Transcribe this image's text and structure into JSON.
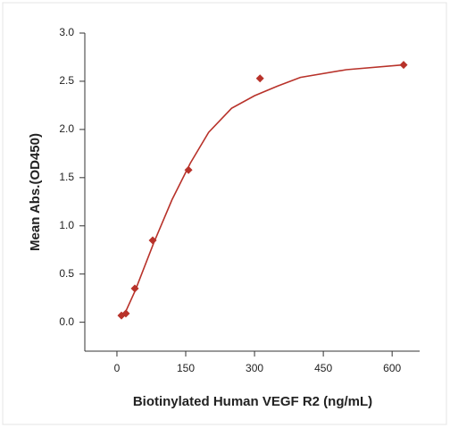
{
  "chart_data": {
    "type": "scatter",
    "x_label": "Biotinylated Human VEGF R2  (ng/mL)",
    "y_label": "Mean Abs.(OD450)",
    "x": [
      9.8,
      19.5,
      39,
      78,
      156,
      312,
      625
    ],
    "values": [
      0.07,
      0.09,
      0.35,
      0.85,
      1.58,
      2.53,
      2.67
    ],
    "fit_x": [
      10,
      20,
      40,
      80,
      120,
      160,
      200,
      250,
      300,
      350,
      400,
      500,
      625
    ],
    "fit_values": [
      0.05,
      0.12,
      0.33,
      0.82,
      1.27,
      1.65,
      1.97,
      2.22,
      2.35,
      2.45,
      2.54,
      2.62,
      2.67
    ],
    "color": "#b8322a",
    "xlim": [
      -70,
      660
    ],
    "xticks": [
      0,
      150,
      300,
      450,
      600
    ],
    "ylim": [
      -0.3,
      3.0
    ],
    "yticks": [
      {
        "value": 0,
        "label": "0.0"
      },
      {
        "value": 0.5,
        "label": "0.5"
      },
      {
        "value": 1,
        "label": "1.0"
      },
      {
        "value": 1.5,
        "label": "1.5"
      },
      {
        "value": 2,
        "label": "2.0"
      },
      {
        "value": 2.5,
        "label": "2.5"
      },
      {
        "value": 3,
        "label": "3.0"
      }
    ]
  }
}
